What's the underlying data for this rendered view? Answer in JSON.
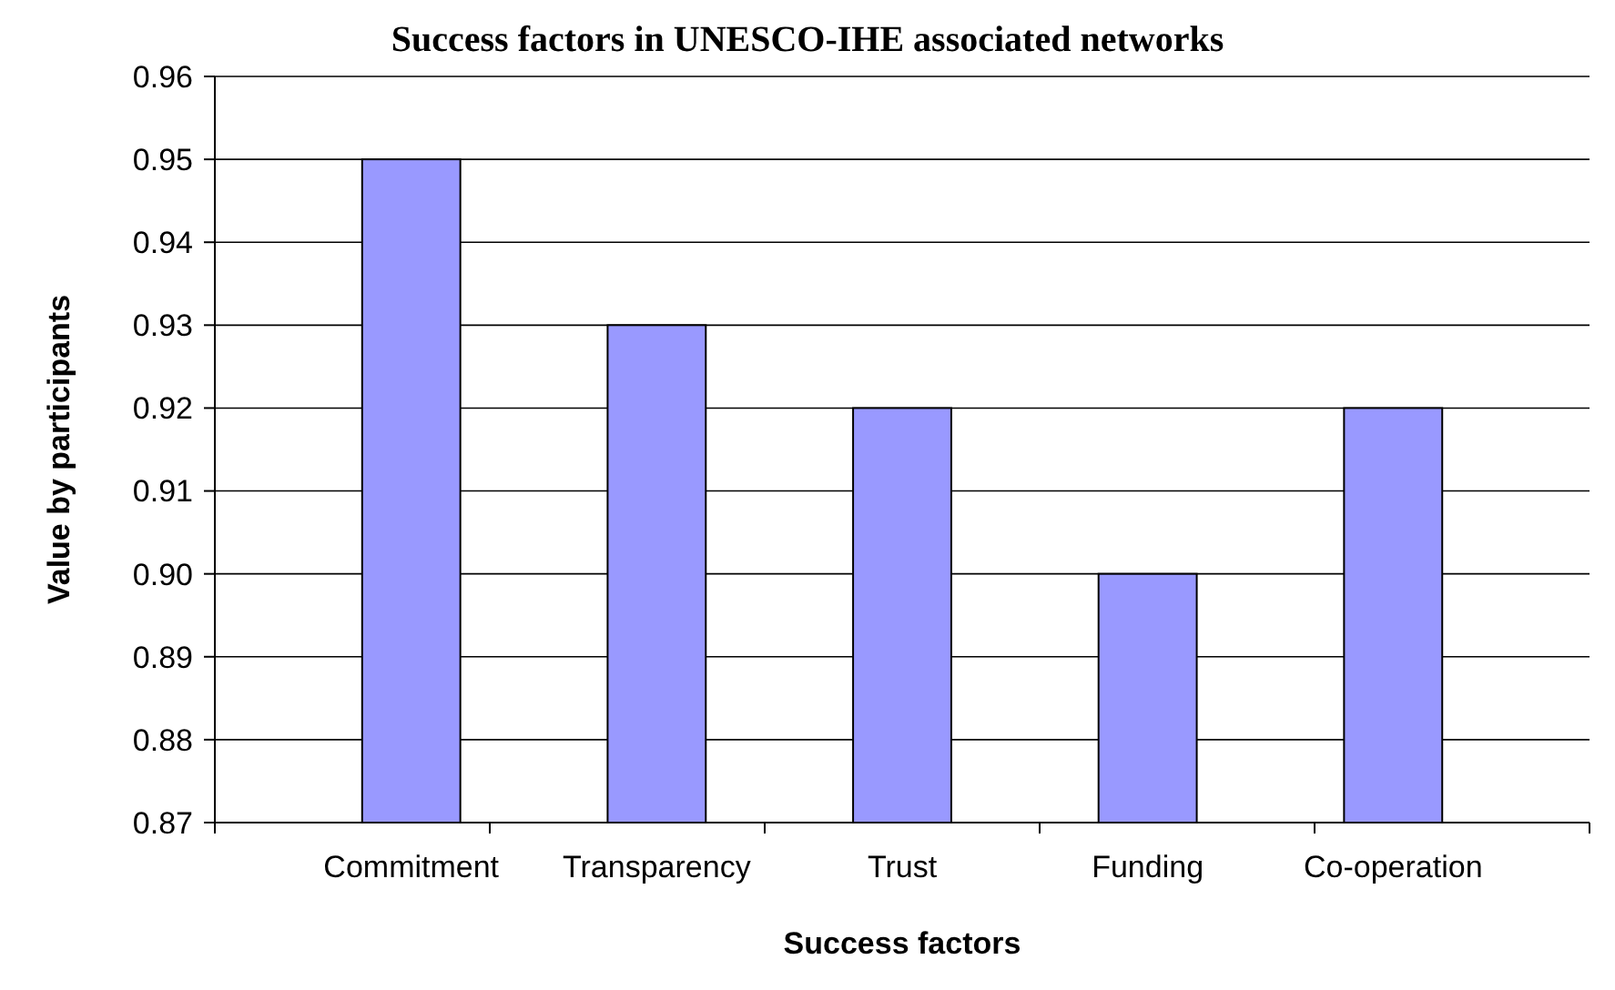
{
  "chart_data": {
    "type": "bar",
    "title": "Success factors in UNESCO-IHE associated networks",
    "xlabel": "Success factors",
    "ylabel": "Value by participants",
    "categories": [
      "Commitment",
      "Transparency",
      "Trust",
      "Funding",
      "Co-operation"
    ],
    "values": [
      0.95,
      0.93,
      0.92,
      0.9,
      0.92
    ],
    "color": "#9999ff",
    "ylim": [
      0.87,
      0.96
    ],
    "yticks": [
      0.87,
      0.88,
      0.89,
      {
        "value": 0.9,
        "label": "0.90"
      },
      0.91,
      0.92,
      0.93,
      0.94,
      0.95,
      0.96
    ],
    "grid": "y"
  }
}
